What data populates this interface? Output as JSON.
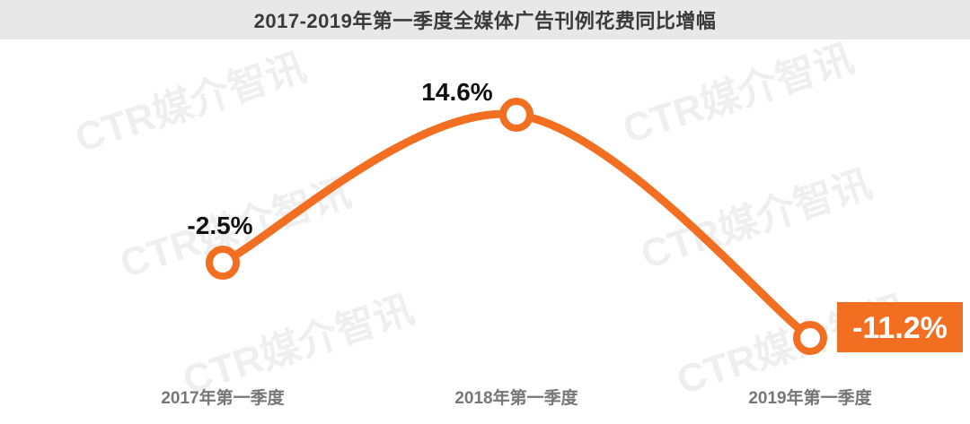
{
  "chart_data": {
    "type": "line",
    "title": "2017-2019年第一季度全媒体广告刊例花费同比增幅",
    "categories": [
      "2017年第一季度",
      "2018年第一季度",
      "2019年第一季度"
    ],
    "values": [
      -2.5,
      14.6,
      -11.2
    ],
    "value_labels": [
      "-2.5%",
      "14.6%",
      "-11.2%"
    ],
    "unit": "%",
    "highlight_index": 2,
    "grid": false,
    "legend": "none"
  },
  "watermark": "CTR媒介智讯",
  "colors": {
    "line": "#f26f21",
    "highlight_box": "#f26f21",
    "title_bg": "#e8e8e8"
  }
}
